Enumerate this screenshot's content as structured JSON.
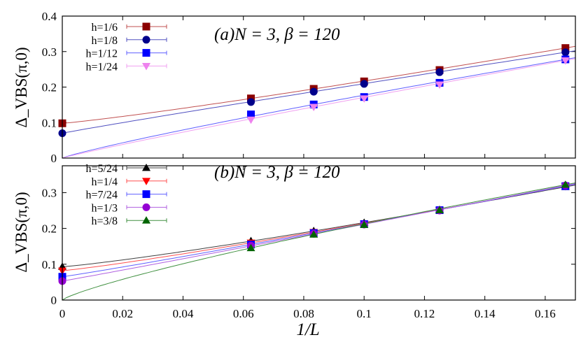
{
  "chart_data": [
    {
      "type": "scatter",
      "annotation": "(a)N = 3, β = 120",
      "ylabel": "Δ_VBS(π,0)",
      "xlabel": "",
      "xlim": [
        0,
        0.17
      ],
      "ylim": [
        0,
        0.4
      ],
      "yticks": [
        "0",
        "0.1",
        "0.2",
        "0.3",
        "0.4"
      ],
      "legend": "top-left",
      "series": [
        {
          "name": "h=1/6",
          "color": "#8b0000",
          "line": "#c05050",
          "marker": "square",
          "x": [
            0,
            0.0625,
            0.0833,
            0.1,
            0.125,
            0.1667
          ],
          "y": [
            0.098,
            0.168,
            0.195,
            0.216,
            0.248,
            0.31
          ],
          "fit0": 0.098
        },
        {
          "name": "h=1/8",
          "color": "#00008b",
          "line": "#5050c0",
          "marker": "circle",
          "x": [
            0,
            0.0625,
            0.0833,
            0.1,
            0.125,
            0.1667
          ],
          "y": [
            0.07,
            0.158,
            0.187,
            0.209,
            0.242,
            0.298
          ],
          "fit0": 0.07
        },
        {
          "name": "h=1/12",
          "color": "#0000ff",
          "line": "#6060ff",
          "marker": "square",
          "x": [
            0.0625,
            0.0833,
            0.1,
            0.125,
            0.1667
          ],
          "y": [
            0.123,
            0.151,
            0.172,
            0.212,
            0.278
          ],
          "fit0": 0
        },
        {
          "name": "h=1/24",
          "color": "#ee82ee",
          "line": "#f0a0f0",
          "marker": "triangle-down",
          "x": [
            0.0625,
            0.0833,
            0.1,
            0.125,
            0.1667
          ],
          "y": [
            0.108,
            0.144,
            0.168,
            0.207,
            0.275
          ],
          "fit0": 0
        }
      ]
    },
    {
      "type": "scatter",
      "annotation": "(b)N = 3, β = 120",
      "ylabel": "Δ_VBS(π,0)",
      "xlabel": "1/L",
      "xlim": [
        0,
        0.17
      ],
      "ylim": [
        0,
        0.375
      ],
      "yticks": [
        "0",
        "0.1",
        "0.2",
        "0.3"
      ],
      "xticks": [
        "0",
        "0.02",
        "0.04",
        "0.06",
        "0.08",
        "0.1",
        "0.12",
        "0.14",
        "0.16"
      ],
      "legend": "top-left",
      "series": [
        {
          "name": "h=5/24",
          "color": "#000000",
          "line": "#404040",
          "marker": "triangle-up",
          "x": [
            0,
            0.0625,
            0.0833,
            0.1,
            0.125,
            0.1667
          ],
          "y": [
            0.093,
            0.165,
            0.193,
            0.216,
            0.252,
            0.316
          ],
          "fit0": 0.093
        },
        {
          "name": "h=1/4",
          "color": "#ff0000",
          "line": "#ff5050",
          "marker": "triangle-down",
          "x": [
            0,
            0.0625,
            0.0833,
            0.1,
            0.125,
            0.1667
          ],
          "y": [
            0.082,
            0.16,
            0.19,
            0.214,
            0.251,
            0.318
          ],
          "fit0": 0.082
        },
        {
          "name": "h=7/24",
          "color": "#0000ff",
          "line": "#6060ff",
          "marker": "square",
          "x": [
            0,
            0.0625,
            0.0833,
            0.1,
            0.125,
            0.1667
          ],
          "y": [
            0.065,
            0.155,
            0.187,
            0.212,
            0.251,
            0.318
          ],
          "fit0": 0.065
        },
        {
          "name": "h=1/3",
          "color": "#9400d3",
          "line": "#b060e0",
          "marker": "circle",
          "x": [
            0,
            0.0625,
            0.0833,
            0.1,
            0.125,
            0.1667
          ],
          "y": [
            0.053,
            0.152,
            0.185,
            0.211,
            0.25,
            0.32
          ],
          "fit0": 0.053
        },
        {
          "name": "h=3/8",
          "color": "#006400",
          "line": "#409040",
          "marker": "triangle-up",
          "x": [
            0.0625,
            0.0833,
            0.1,
            0.125,
            0.1667
          ],
          "y": [
            0.145,
            0.183,
            0.21,
            0.251,
            0.322
          ],
          "fit0": 0
        }
      ]
    }
  ]
}
